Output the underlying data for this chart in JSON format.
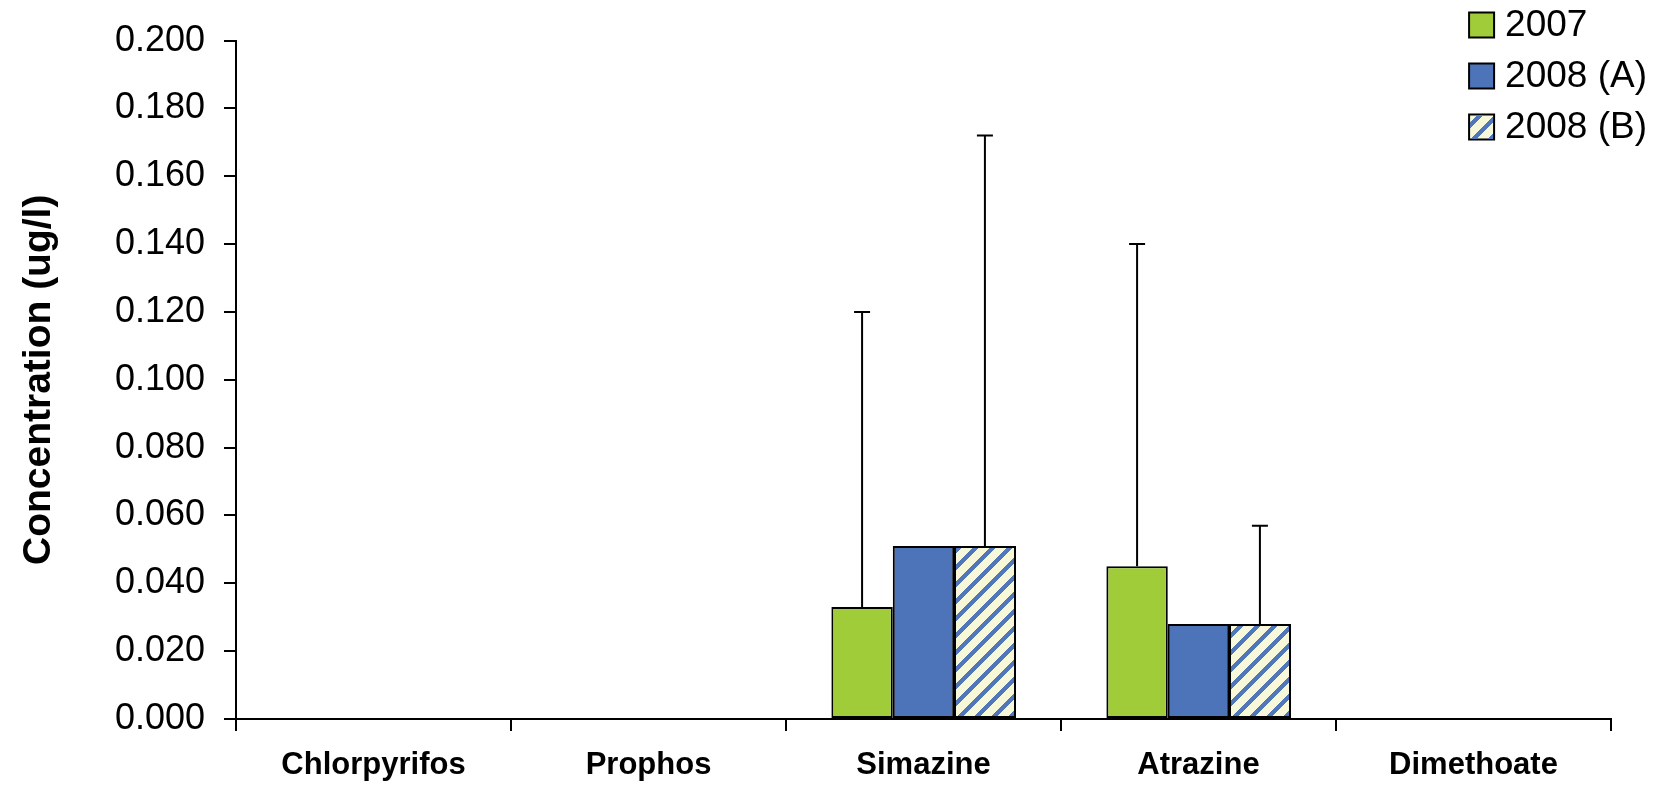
{
  "chart_data": {
    "type": "bar",
    "ylabel": "Concentration (ug/l)",
    "categories": [
      "Chlorpyrifos",
      "Prophos",
      "Simazine",
      "Atrazine",
      "Dimethoate"
    ],
    "series": [
      {
        "name": "2007",
        "color": "#a0cc3a",
        "values": [
          0,
          0,
          0.033,
          0.045,
          0
        ],
        "errors": [
          null,
          null,
          [
            0.033,
            0.12
          ],
          [
            0.045,
            0.14
          ],
          null
        ]
      },
      {
        "name": "2008 (A)",
        "color": "#4d74b8",
        "values": [
          0,
          0,
          0.051,
          0.028,
          0
        ]
      },
      {
        "name": "2008 (B)",
        "color": "#f7f7d9",
        "values": [
          0,
          0,
          0.051,
          0.028,
          0
        ],
        "errors": [
          null,
          null,
          [
            0.051,
            0.172
          ],
          [
            0.028,
            0.057
          ],
          null
        ]
      }
    ],
    "ylim": [
      0,
      0.2
    ],
    "yticks": [
      {
        "value": 0,
        "label": "0.000"
      },
      {
        "value": 0.02,
        "label": "0.020"
      },
      {
        "value": 0.04,
        "label": "0.040"
      },
      {
        "value": 0.06,
        "label": "0.060"
      },
      {
        "value": 0.08,
        "label": "0.080"
      },
      {
        "value": 0.1,
        "label": "0.100"
      },
      {
        "value": 0.12,
        "label": "0.120"
      },
      {
        "value": 0.14,
        "label": "0.140"
      },
      {
        "value": 0.16,
        "label": "0.160"
      },
      {
        "value": 0.18,
        "label": "0.180"
      },
      {
        "value": 0.2,
        "label": "0.200"
      }
    ],
    "legend": "top right",
    "grid": false
  }
}
